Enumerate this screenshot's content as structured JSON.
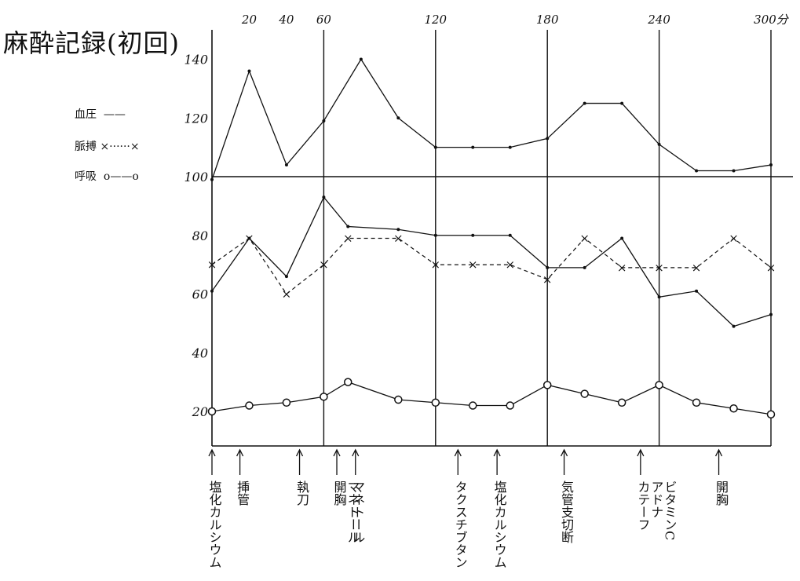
{
  "title": "麻酔記録(初回)",
  "legend": [
    {
      "label": "血圧",
      "style": "solid"
    },
    {
      "label": "脈搏",
      "style": "dotted-x"
    },
    {
      "label": "呼吸",
      "style": "circle-line"
    }
  ],
  "x_ticks": [
    {
      "x": 20,
      "label": "20"
    },
    {
      "x": 40,
      "label": "40"
    },
    {
      "x": 60,
      "label": "60"
    },
    {
      "x": 120,
      "label": "120"
    },
    {
      "x": 180,
      "label": "180"
    },
    {
      "x": 240,
      "label": "240"
    },
    {
      "x": 300,
      "label": "300分"
    }
  ],
  "y_ticks": [
    20,
    40,
    60,
    80,
    100,
    120,
    140
  ],
  "chart_data": {
    "type": "line",
    "title": "麻酔記録(初回)",
    "xlim": [
      0,
      300
    ],
    "ylim": [
      15,
      150
    ],
    "xlabel": "",
    "ylabel": "",
    "reference_line": 100,
    "vertical_lines": [
      60,
      120,
      180,
      240
    ],
    "series": [
      {
        "name": "血圧",
        "points": [
          [
            0,
            99
          ],
          [
            20,
            136
          ],
          [
            40,
            104
          ],
          [
            60,
            119
          ],
          [
            80,
            140
          ],
          [
            100,
            120
          ],
          [
            120,
            110
          ],
          [
            140,
            110
          ],
          [
            160,
            110
          ],
          [
            180,
            113
          ],
          [
            200,
            125
          ],
          [
            220,
            125
          ],
          [
            240,
            111
          ],
          [
            260,
            102
          ],
          [
            280,
            102
          ],
          [
            300,
            104
          ]
        ]
      },
      {
        "name": "血圧",
        "points": [
          [
            0,
            61
          ],
          [
            20,
            79
          ],
          [
            40,
            66
          ],
          [
            60,
            93
          ],
          [
            73,
            83
          ],
          [
            100,
            82
          ],
          [
            120,
            80
          ],
          [
            140,
            80
          ],
          [
            160,
            80
          ],
          [
            180,
            69
          ],
          [
            200,
            69
          ],
          [
            220,
            79
          ],
          [
            240,
            59
          ],
          [
            260,
            61
          ],
          [
            280,
            49
          ],
          [
            300,
            53
          ]
        ]
      },
      {
        "name": "脈搏",
        "points": [
          [
            0,
            70
          ],
          [
            20,
            79
          ],
          [
            40,
            60
          ],
          [
            60,
            70
          ],
          [
            73,
            79
          ],
          [
            100,
            79
          ],
          [
            120,
            70
          ],
          [
            140,
            70
          ],
          [
            160,
            70
          ],
          [
            180,
            65
          ],
          [
            200,
            79
          ],
          [
            220,
            69
          ],
          [
            240,
            69
          ],
          [
            260,
            69
          ],
          [
            280,
            79
          ],
          [
            300,
            69
          ]
        ]
      },
      {
        "name": "呼吸",
        "points": [
          [
            0,
            20
          ],
          [
            20,
            22
          ],
          [
            40,
            23
          ],
          [
            60,
            25
          ],
          [
            73,
            30
          ],
          [
            100,
            24
          ],
          [
            120,
            23
          ],
          [
            140,
            22
          ],
          [
            160,
            22
          ],
          [
            180,
            29
          ],
          [
            200,
            26
          ],
          [
            220,
            23
          ],
          [
            240,
            29
          ],
          [
            260,
            23
          ],
          [
            280,
            21
          ],
          [
            300,
            19
          ]
        ]
      }
    ]
  },
  "events": [
    {
      "x": 0,
      "label": "塩化カルシウム"
    },
    {
      "x": 15,
      "label": "挿管"
    },
    {
      "x": 47,
      "label": "執刀"
    },
    {
      "x": 67,
      "label": "開胸"
    },
    {
      "x": 67,
      "label": "マネトール"
    },
    {
      "x": 77,
      "label": "マネトール"
    },
    {
      "x": 132,
      "label": "タクスチブタン"
    },
    {
      "x": 153,
      "label": "塩化カルシウム"
    },
    {
      "x": 189,
      "label": "気管支切断"
    },
    {
      "x": 230,
      "label": "カテーフ"
    },
    {
      "x": 230,
      "label": "アドナ"
    },
    {
      "x": 230,
      "label": "ビタミンC"
    },
    {
      "x": 272,
      "label": "開胸"
    }
  ]
}
